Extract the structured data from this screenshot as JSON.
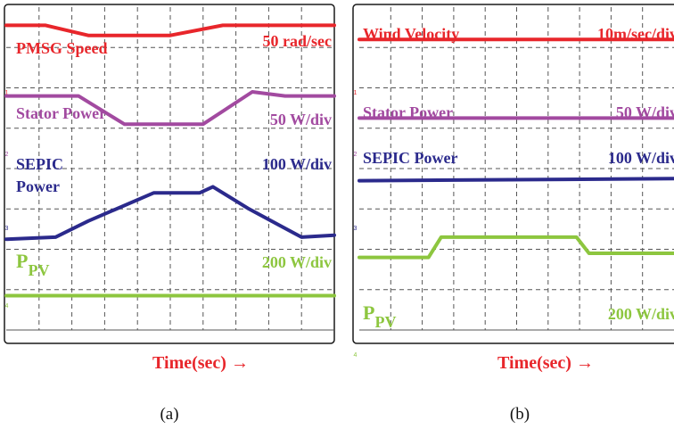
{
  "colors": {
    "red": "#e8262b",
    "magenta": "#a24aa0",
    "navy": "#2b2a8c",
    "green": "#8dc63f",
    "frame": "#1a1a1a",
    "grid": "#555555",
    "background": "#ffffff"
  },
  "chart_data": [
    {
      "panel": "a",
      "type": "line",
      "caption": "(a)",
      "xlabel": "Time(sec)",
      "arrow": "→",
      "divisions": {
        "x": 10,
        "y": 8
      },
      "channel_markers": [
        "1",
        "2",
        "3",
        "4"
      ],
      "series": [
        {
          "name": "PMSG Speed",
          "scale": "50 rad/sec",
          "color": "red",
          "x": [
            0,
            1.2,
            2.5,
            5.0,
            6.6,
            8.0,
            10
          ],
          "y": [
            7.55,
            7.55,
            7.3,
            7.3,
            7.55,
            7.55,
            7.55
          ]
        },
        {
          "name": "Stator Power",
          "scale": "50 W/div",
          "color": "magenta",
          "x": [
            0,
            2.2,
            3.6,
            6.0,
            7.5,
            8.5,
            10
          ],
          "y": [
            5.8,
            5.8,
            5.1,
            5.1,
            5.9,
            5.8,
            5.8
          ]
        },
        {
          "name_lines": [
            "SEPIC",
            "Power"
          ],
          "scale": "100 W/div",
          "color": "navy",
          "x": [
            0,
            1.5,
            2.5,
            4.5,
            5.9,
            6.3,
            7.4,
            9.0,
            10
          ],
          "y": [
            2.25,
            2.3,
            2.7,
            3.4,
            3.4,
            3.55,
            3.0,
            2.3,
            2.35
          ]
        },
        {
          "name_main": "P",
          "name_sub": "PV",
          "scale": "200 W/div",
          "color": "green",
          "x": [
            0,
            10
          ],
          "y": [
            0.85,
            0.85
          ]
        }
      ]
    },
    {
      "panel": "b",
      "type": "line",
      "caption": "(b)",
      "xlabel": "Time(sec)",
      "arrow": "→",
      "divisions": {
        "x": 10,
        "y": 8
      },
      "channel_markers": [
        "1",
        "2",
        "3",
        "4"
      ],
      "series": [
        {
          "name": "Wind Velocity",
          "scale": "10m/sec/div",
          "color": "red",
          "x": [
            0,
            10
          ],
          "y": [
            7.2,
            7.2
          ]
        },
        {
          "name": "Stator Power",
          "scale": "50 W/div",
          "color": "magenta",
          "x": [
            0,
            10
          ],
          "y": [
            5.25,
            5.25
          ]
        },
        {
          "name": "SEPIC Power",
          "scale": "100 W/div",
          "color": "navy",
          "x": [
            0,
            10
          ],
          "y": [
            3.7,
            3.75
          ]
        },
        {
          "name_main": "P",
          "name_sub": "PV",
          "scale": "200 W/div",
          "color": "green",
          "x": [
            0,
            2.2,
            2.6,
            6.9,
            7.3,
            10
          ],
          "y": [
            1.8,
            1.8,
            2.3,
            2.3,
            1.9,
            1.9
          ]
        }
      ]
    }
  ]
}
